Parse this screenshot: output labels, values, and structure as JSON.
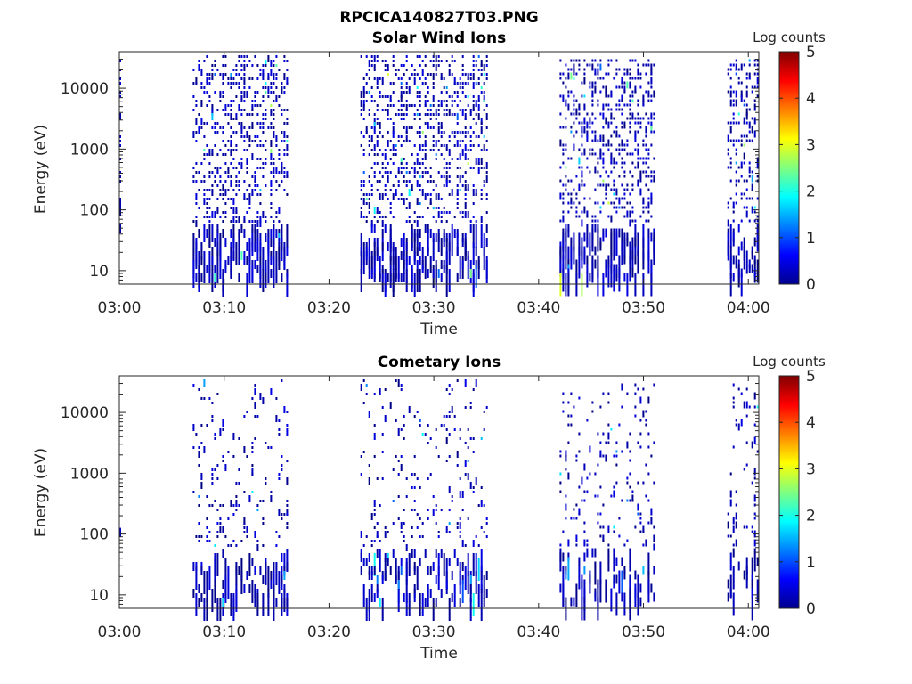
{
  "figure_title": "RPCICA140827T03.PNG",
  "colorbar_scale": {
    "label": "Log counts",
    "ticks": [
      "0",
      "1",
      "2",
      "3",
      "4",
      "5"
    ],
    "colormap": "jet",
    "range": [
      0,
      5
    ]
  },
  "chart_data": [
    {
      "type": "heatmap",
      "title": "Solar Wind Ions",
      "xlabel": "Time",
      "ylabel": "Energy (eV)",
      "x_tick_labels": [
        "03:00",
        "03:10",
        "03:20",
        "03:30",
        "03:40",
        "03:50",
        "04:00"
      ],
      "x_ticks_minutes": [
        0,
        10,
        20,
        30,
        40,
        50,
        60
      ],
      "xlim_minutes": [
        0,
        61
      ],
      "y_tick_labels": [
        "10",
        "100",
        "1000",
        "10000"
      ],
      "y_ticks": [
        10,
        100,
        1000,
        10000
      ],
      "ylim": [
        6,
        40000
      ],
      "yscale": "log",
      "active_intervals": [
        {
          "start": "03:00",
          "end": "03:00",
          "energy_band": [
            30,
            35000
          ]
        },
        {
          "start": "03:07",
          "end": "03:16",
          "energy_band": [
            8,
            35000
          ]
        },
        {
          "start": "03:23",
          "end": "03:35",
          "energy_band": [
            8,
            35000
          ]
        },
        {
          "start": "03:42",
          "end": "03:51",
          "energy_band": [
            8,
            30000
          ]
        },
        {
          "start": "03:58",
          "end": "04:01",
          "energy_band": [
            8,
            30000
          ]
        }
      ],
      "max_log_counts": 2
    },
    {
      "type": "heatmap",
      "title": "Cometary Ions",
      "xlabel": "Time",
      "ylabel": "Energy (eV)",
      "x_tick_labels": [
        "03:00",
        "03:10",
        "03:20",
        "03:30",
        "03:40",
        "03:50",
        "04:00"
      ],
      "x_ticks_minutes": [
        0,
        10,
        20,
        30,
        40,
        50,
        60
      ],
      "xlim_minutes": [
        0,
        61
      ],
      "y_tick_labels": [
        "10",
        "100",
        "1000",
        "10000"
      ],
      "y_ticks": [
        10,
        100,
        1000,
        10000
      ],
      "ylim": [
        6,
        40000
      ],
      "yscale": "log",
      "active_intervals": [
        {
          "start": "03:00",
          "end": "03:00",
          "energy_band": [
            120,
            150
          ]
        },
        {
          "start": "03:07",
          "end": "03:16",
          "energy_band": [
            8,
            35000
          ]
        },
        {
          "start": "03:23",
          "end": "03:35",
          "energy_band": [
            8,
            35000
          ]
        },
        {
          "start": "03:42",
          "end": "03:51",
          "energy_band": [
            8,
            30000
          ]
        },
        {
          "start": "03:58",
          "end": "04:01",
          "energy_band": [
            8,
            30000
          ]
        }
      ],
      "max_log_counts": 1
    }
  ]
}
